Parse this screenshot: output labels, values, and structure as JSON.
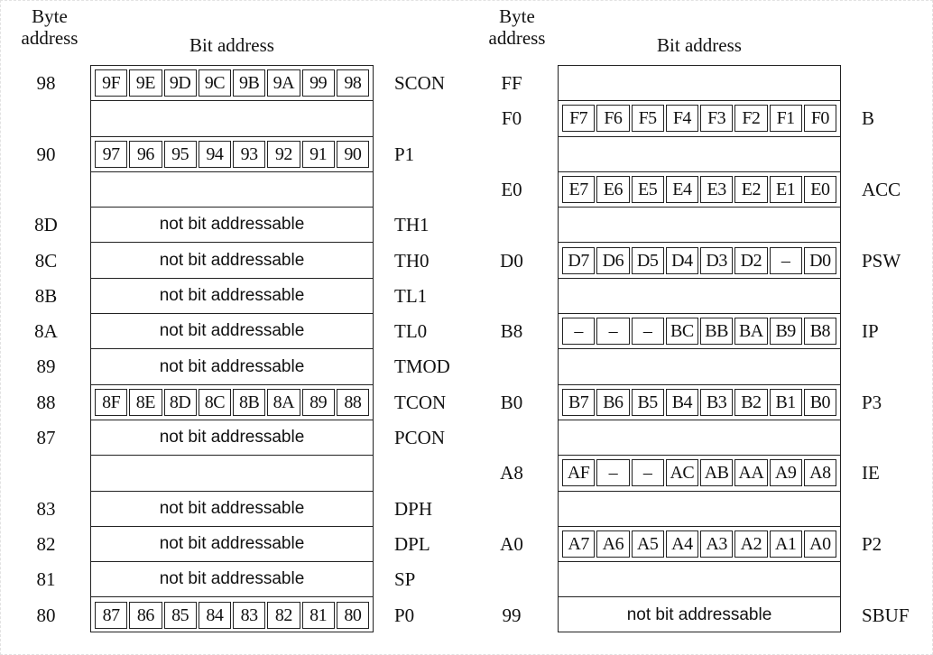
{
  "left": {
    "byte_header": "Byte address",
    "bit_header": "Bit address",
    "rows": [
      {
        "byte": "98",
        "bits": [
          "9F",
          "9E",
          "9D",
          "9C",
          "9B",
          "9A",
          "99",
          "98"
        ],
        "reg": "SCON"
      },
      {
        "byte": "",
        "bits": [],
        "reg": ""
      },
      {
        "byte": "90",
        "bits": [
          "97",
          "96",
          "95",
          "94",
          "93",
          "92",
          "91",
          "90"
        ],
        "reg": "P1"
      },
      {
        "byte": "",
        "bits": [],
        "reg": ""
      },
      {
        "byte": "8D",
        "text": "not bit addressable",
        "reg": "TH1"
      },
      {
        "byte": "8C",
        "text": "not bit addressable",
        "reg": "TH0"
      },
      {
        "byte": "8B",
        "text": "not bit addressable",
        "reg": "TL1"
      },
      {
        "byte": "8A",
        "text": "not bit addressable",
        "reg": "TL0"
      },
      {
        "byte": "89",
        "text": "not bit addressable",
        "reg": "TMOD"
      },
      {
        "byte": "88",
        "bits": [
          "8F",
          "8E",
          "8D",
          "8C",
          "8B",
          "8A",
          "89",
          "88"
        ],
        "reg": "TCON"
      },
      {
        "byte": "87",
        "text": "not bit addressable",
        "reg": "PCON"
      },
      {
        "byte": "",
        "bits": [],
        "reg": ""
      },
      {
        "byte": "83",
        "text": "not bit addressable",
        "reg": "DPH"
      },
      {
        "byte": "82",
        "text": "not bit addressable",
        "reg": "DPL"
      },
      {
        "byte": "81",
        "text": "not bit addressable",
        "reg": "SP"
      },
      {
        "byte": "80",
        "bits": [
          "87",
          "86",
          "85",
          "84",
          "83",
          "82",
          "81",
          "80"
        ],
        "reg": "P0"
      }
    ]
  },
  "right": {
    "byte_header": "Byte address",
    "bit_header": "Bit address",
    "rows": [
      {
        "byte": "FF",
        "bits": [],
        "reg": ""
      },
      {
        "byte": "F0",
        "bits": [
          "F7",
          "F6",
          "F5",
          "F4",
          "F3",
          "F2",
          "F1",
          "F0"
        ],
        "reg": "B"
      },
      {
        "byte": "",
        "bits": [],
        "reg": ""
      },
      {
        "byte": "E0",
        "bits": [
          "E7",
          "E6",
          "E5",
          "E4",
          "E3",
          "E2",
          "E1",
          "E0"
        ],
        "reg": "ACC"
      },
      {
        "byte": "",
        "bits": [],
        "reg": ""
      },
      {
        "byte": "D0",
        "bits": [
          "D7",
          "D6",
          "D5",
          "D4",
          "D3",
          "D2",
          "–",
          "D0"
        ],
        "reg": "PSW"
      },
      {
        "byte": "",
        "bits": [],
        "reg": ""
      },
      {
        "byte": "B8",
        "bits": [
          "–",
          "–",
          "–",
          "BC",
          "BB",
          "BA",
          "B9",
          "B8"
        ],
        "reg": "IP"
      },
      {
        "byte": "",
        "bits": [],
        "reg": ""
      },
      {
        "byte": "B0",
        "bits": [
          "B7",
          "B6",
          "B5",
          "B4",
          "B3",
          "B2",
          "B1",
          "B0"
        ],
        "reg": "P3"
      },
      {
        "byte": "",
        "bits": [],
        "reg": ""
      },
      {
        "byte": "A8",
        "bits": [
          "AF",
          "–",
          "–",
          "AC",
          "AB",
          "AA",
          "A9",
          "A8"
        ],
        "reg": "IE"
      },
      {
        "byte": "",
        "bits": [],
        "reg": ""
      },
      {
        "byte": "A0",
        "bits": [
          "A7",
          "A6",
          "A5",
          "A4",
          "A3",
          "A2",
          "A1",
          "A0"
        ],
        "reg": "P2"
      },
      {
        "byte": "",
        "bits": [],
        "reg": ""
      },
      {
        "byte": "99",
        "text": "not bit addressable",
        "reg": "SBUF"
      }
    ]
  }
}
